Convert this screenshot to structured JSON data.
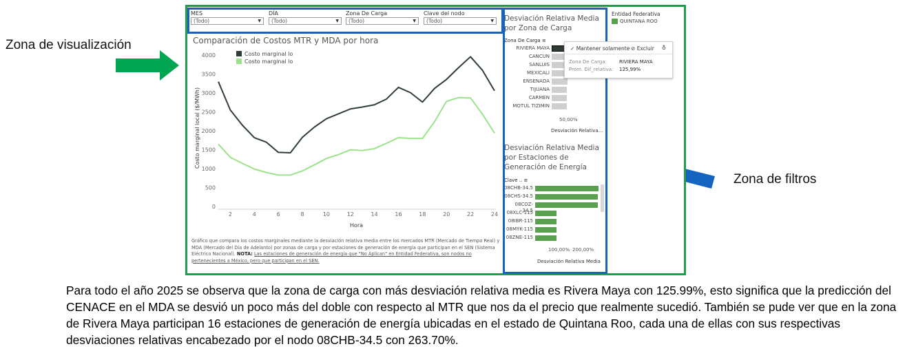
{
  "labels": {
    "visualization_zone": "Zona de visualización",
    "filter_zone": "Zona de filtros"
  },
  "colors": {
    "green_frame": "#1f9e4a",
    "blue_frame": "#1565c0",
    "arrow_green": "#00a651",
    "arrow_blue": "#1565c0",
    "bar_green": "#59a14f",
    "bar_gray": "#cfcfcf",
    "line_dark": "#2f3e34",
    "line_light": "#9be38b"
  },
  "filters": [
    {
      "label": "MES",
      "value": "(Todo)"
    },
    {
      "label": "DÍA",
      "value": "(Todo)"
    },
    {
      "label": "Zona De Carga",
      "value": "(Todo)"
    },
    {
      "label": "Clave del nodo",
      "value": "(Todo)"
    }
  ],
  "chart_data": {
    "type": "line",
    "title": "Comparación de Costos MTR y MDA por hora",
    "xlabel": "Hora",
    "ylabel": "Costo marginal local ($/MWh)",
    "x": [
      1,
      2,
      3,
      4,
      5,
      6,
      7,
      8,
      9,
      10,
      11,
      12,
      13,
      14,
      15,
      16,
      17,
      18,
      19,
      20,
      21,
      22,
      23,
      24
    ],
    "xticks": [
      2,
      4,
      6,
      8,
      10,
      12,
      14,
      16,
      18,
      20,
      22,
      24
    ],
    "yticks": [
      0,
      500,
      1000,
      1500,
      2000,
      2500,
      3000,
      3500,
      4000
    ],
    "ylim": [
      0,
      4150
    ],
    "grid": false,
    "legend_position": "top-left",
    "series": [
      {
        "name": "Costo marginal lo",
        "color": "#2f3e34",
        "values": [
          3300,
          2550,
          2150,
          1820,
          1700,
          1430,
          1420,
          1830,
          2100,
          2320,
          2450,
          2580,
          2630,
          2690,
          2840,
          3150,
          3010,
          2760,
          3120,
          3360,
          3670,
          3960,
          3600,
          3060
        ]
      },
      {
        "name": "Costo marginal lo",
        "color": "#9be38b",
        "values": [
          1650,
          1300,
          1140,
          990,
          900,
          830,
          830,
          940,
          1100,
          1270,
          1370,
          1500,
          1480,
          1530,
          1670,
          1820,
          1800,
          1800,
          2240,
          2780,
          2880,
          2870,
          2440,
          1940
        ]
      }
    ]
  },
  "note": {
    "text": "Gráfico que compara los costos marginales mediante la desviación relativa media entre los mercados MTR (Mercado de Tiempo Real) y MDA (Mercado del Día de Adelanto) por zonas de carga y por estaciones de generación de energía que participan en el SEN (Sistema Eléctrico Nacional).",
    "bold": "NOTA:",
    "underlined": "Las estaciones de generación de energía que \"No Aplican\" en Entidad Federativa, son nodos no pertenecientes a México, pero que participan en el SEN."
  },
  "zone_panel": {
    "title": "Desviación Relativa Media por Zona de Carga",
    "column_header": "Zona De Carga",
    "axis_tick": "50,00%",
    "axis_title": "Desviación Relativa...",
    "rows": [
      {
        "name": "RIVIERA MAYA",
        "value": 125.99,
        "selected": true
      },
      {
        "name": "CANCUN",
        "value": 65
      },
      {
        "name": "SANLUIS",
        "value": 64
      },
      {
        "name": "MEXICALI",
        "value": 63
      },
      {
        "name": "ENSENADA",
        "value": 58
      },
      {
        "name": "TIJUANA",
        "value": 57
      },
      {
        "name": "CARMEN",
        "value": 56
      },
      {
        "name": "MOTUL TIZIMIN",
        "value": 55
      }
    ]
  },
  "station_panel": {
    "title": "Desviación Relativa Media por Estaciones de Generación de Energía",
    "column_header": "Clave ..",
    "axis_tick_1": "100,00%",
    "axis_tick_2": "200,00%",
    "axis_title": "Desviación Relativa Media",
    "rows": [
      {
        "name": "08CHB-34.5",
        "value": 263.7
      },
      {
        "name": "08CHS-34.5",
        "value": 262
      },
      {
        "name": "08COZ-34.5",
        "value": 262
      },
      {
        "name": "08XLC-115",
        "value": 90
      },
      {
        "name": "08IBR-115",
        "value": 89
      },
      {
        "name": "08MYK-115",
        "value": 88
      },
      {
        "name": "08ZNE-115",
        "value": 88
      }
    ]
  },
  "entity_legend": {
    "title": "Entidad Federativa",
    "item": "QUINTANA ROO"
  },
  "tooltip": {
    "keep_only": "Mantener solamente",
    "exclude": "Excluir",
    "field1_label": "Zona De Carga:",
    "field1_value": "RIVIERA MAYA",
    "field2_label": "Prom. Dif_relativa:",
    "field2_value": "125,99%"
  },
  "caption": "Para todo el año 2025 se observa que la zona de carga con más desviación relativa media es Rivera Maya con 125.99%, esto significa que la predicción del CENACE en el MDA se desvió un poco más del doble con respecto al MTR que nos da el precio que realmente sucedió. También se pude ver que en la zona de Rivera Maya participan 16 estaciones de generación de energía ubicadas en el estado de Quintana Roo, cada una de ellas con sus respectivas desviaciones relativas encabezado por el nodo 08CHB-34.5 con 263.70%."
}
